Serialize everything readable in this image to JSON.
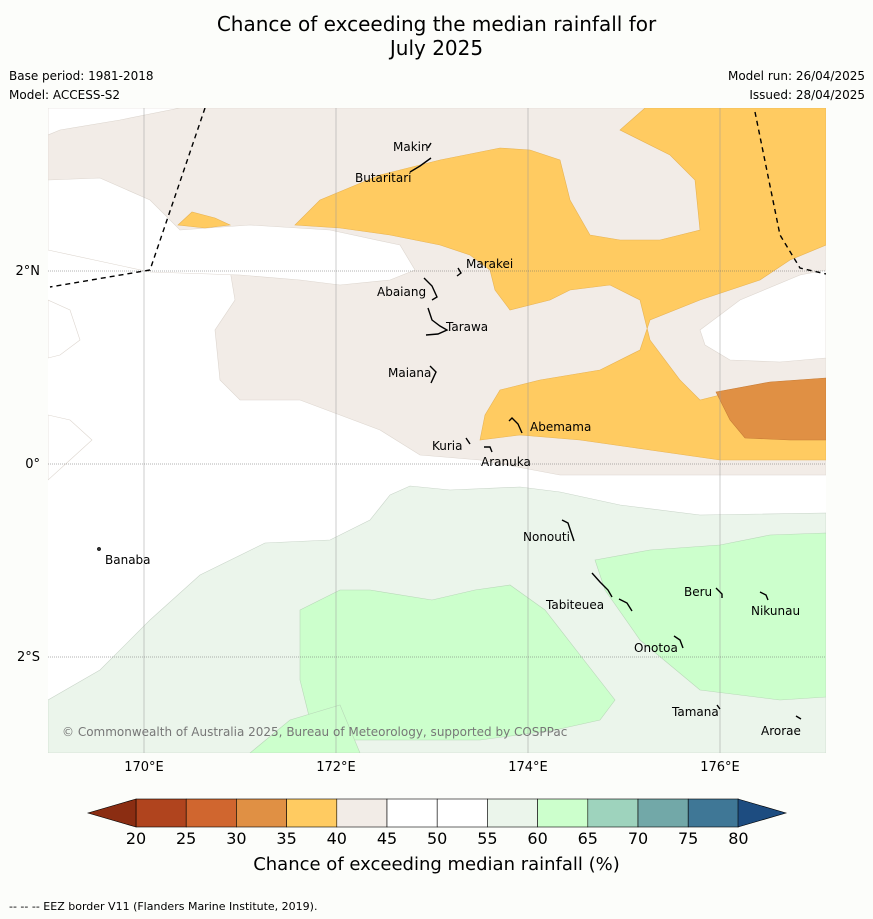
{
  "title": {
    "line1": "Chance of exceeding the median rainfall for",
    "line2": "July 2025"
  },
  "meta": {
    "base_period": "Base period: 1981-2018",
    "model": "Model: ACCESS-S2",
    "model_run": "Model run: 26/04/2025",
    "issued": "Issued: 28/04/2025"
  },
  "map": {
    "lat_labels": [
      "2°N",
      "0°",
      "2°S"
    ],
    "lon_labels": [
      "170°E",
      "172°E",
      "174°E",
      "176°E"
    ],
    "places": [
      "Makin",
      "Butaritari",
      "Marakei",
      "Abaiang",
      "Tarawa",
      "Maiana",
      "Abemama",
      "Kuria",
      "Aranuka",
      "Nonouti",
      "Banaba",
      "Tabiteuea",
      "Beru",
      "Nikunau",
      "Onotoa",
      "Tamana",
      "Arorae"
    ],
    "copyright": "© Commonwealth of Australia 2025, Bureau of Meteorology, supported by COSPPac",
    "colors": {
      "c30_35": "#e09044",
      "c35_40": "#ffcb61",
      "c40_45": "#f2ece7",
      "c45_55": "#ffffff",
      "c55_60": "#ebf5eb",
      "c60_65": "#ccffcc"
    }
  },
  "colorbar": {
    "ticks": [
      "20",
      "25",
      "30",
      "35",
      "40",
      "45",
      "50",
      "55",
      "60",
      "65",
      "70",
      "75",
      "80"
    ],
    "colors": [
      "#b0441e",
      "#d0662f",
      "#e09044",
      "#ffcb61",
      "#f2ece7",
      "#ffffff",
      "#ffffff",
      "#ebf5eb",
      "#ccffcc",
      "#9ed3bd",
      "#72a8a8",
      "#3f7796"
    ],
    "under_color": "#8b2d12",
    "over_color": "#1d4c80",
    "label": "Chance of exceeding median rainfall (%)"
  },
  "footnote": "--  --  -- EEZ border V11 (Flanders Marine Institute, 2019)."
}
